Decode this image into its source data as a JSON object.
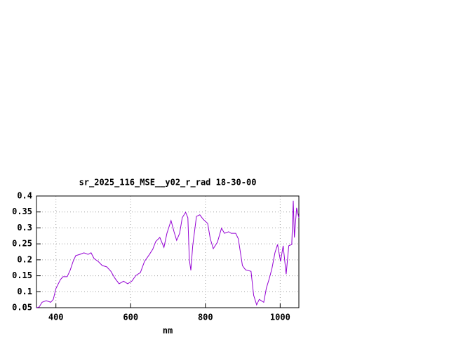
{
  "chart_data": {
    "type": "line",
    "title": "sr_2025_116_MSE__y02_r_rad 18-30-00",
    "xlabel": "nm",
    "x": [
      348,
      355,
      363,
      374,
      386,
      393,
      400,
      412,
      419,
      430,
      438,
      446,
      453,
      464,
      475,
      486,
      494,
      502,
      513,
      524,
      536,
      547,
      558,
      569,
      581,
      592,
      603,
      614,
      626,
      637,
      648,
      659,
      667,
      678,
      689,
      697,
      708,
      716,
      723,
      731,
      738,
      747,
      753,
      757,
      761,
      766,
      776,
      785,
      794,
      806,
      813,
      821,
      832,
      843,
      851,
      862,
      869,
      881,
      888,
      899,
      907,
      922,
      929,
      937,
      944,
      956,
      963,
      971,
      978,
      986,
      993,
      1001,
      1008,
      1016,
      1023,
      1031,
      1035,
      1038,
      1044,
      1050
    ],
    "series": [
      {
        "name": "sr_2025_116_MSE__y02_r_rad",
        "color": "#9400d3",
        "values": [
          0.05,
          0.052,
          0.067,
          0.072,
          0.067,
          0.076,
          0.11,
          0.138,
          0.147,
          0.147,
          0.167,
          0.195,
          0.213,
          0.217,
          0.222,
          0.217,
          0.222,
          0.204,
          0.195,
          0.182,
          0.178,
          0.164,
          0.142,
          0.125,
          0.133,
          0.125,
          0.133,
          0.151,
          0.16,
          0.195,
          0.213,
          0.233,
          0.257,
          0.27,
          0.239,
          0.283,
          0.323,
          0.288,
          0.261,
          0.283,
          0.332,
          0.349,
          0.332,
          0.2,
          0.167,
          0.244,
          0.336,
          0.341,
          0.327,
          0.314,
          0.266,
          0.235,
          0.255,
          0.299,
          0.283,
          0.288,
          0.283,
          0.283,
          0.266,
          0.182,
          0.169,
          0.164,
          0.089,
          0.059,
          0.076,
          0.067,
          0.111,
          0.142,
          0.173,
          0.222,
          0.248,
          0.195,
          0.244,
          0.155,
          0.244,
          0.248,
          0.385,
          0.27,
          0.363,
          0.332
        ]
      }
    ],
    "xlim": [
      348,
      1050
    ],
    "ylim": [
      0.05,
      0.4
    ],
    "xticks": [
      400,
      600,
      800,
      1000
    ],
    "yticks": [
      0.05,
      0.1,
      0.15,
      0.2,
      0.25,
      0.3,
      0.35,
      0.4
    ],
    "grid": true
  }
}
